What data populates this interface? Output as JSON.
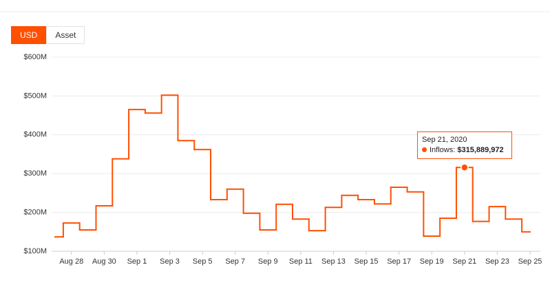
{
  "controls": {
    "toggle": [
      "USD",
      "Asset"
    ]
  },
  "chart_data": {
    "type": "step-line",
    "categories": [
      null,
      "Aug 28",
      null,
      "Aug 30",
      null,
      "Sep 1",
      null,
      "Sep 3",
      null,
      "Sep 5",
      null,
      "Sep 7",
      null,
      "Sep 9",
      null,
      "Sep 11",
      null,
      "Sep 13",
      null,
      "Sep 15",
      null,
      "Sep 17",
      null,
      "Sep 19",
      null,
      "Sep 21",
      null,
      "Sep 23",
      null,
      "Sep 25"
    ],
    "series": [
      {
        "name": "Inflows:",
        "color": "#ff4f00",
        "values": [
          137,
          173,
          155,
          217,
          338,
          465,
          456,
          502,
          385,
          362,
          233,
          260,
          198,
          155,
          221,
          183,
          153,
          213,
          244,
          233,
          222,
          265,
          253,
          139,
          185,
          315.889972,
          177,
          215,
          183,
          150
        ],
        "value_labels": [
          null,
          null,
          null,
          null,
          null,
          null,
          null,
          null,
          null,
          null,
          null,
          null,
          null,
          null,
          null,
          null,
          null,
          null,
          null,
          null,
          null,
          null,
          null,
          null,
          null,
          "$315,889,972",
          null,
          null,
          null,
          null
        ]
      }
    ],
    "tooltip_title": "Sep 21, 2020",
    "ylim": [
      100,
      600
    ],
    "yticks": [
      {
        "value": 100,
        "label": "$100M"
      },
      {
        "value": 200,
        "label": "$200M"
      },
      {
        "value": 300,
        "label": "$300M"
      },
      {
        "value": 400,
        "label": "$400M"
      },
      {
        "value": 500,
        "label": "$500M"
      },
      {
        "value": 600,
        "label": "$600M"
      }
    ],
    "grid": true
  }
}
